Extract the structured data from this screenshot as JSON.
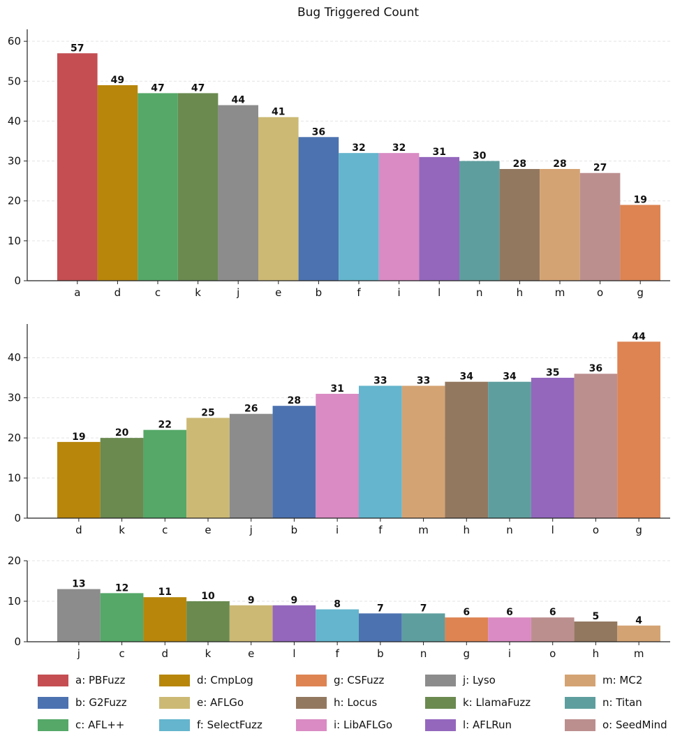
{
  "title": "Bug Triggered Count",
  "chart_data": [
    {
      "type": "bar",
      "title": "Bug Triggered Count",
      "categories": [
        "a",
        "d",
        "c",
        "k",
        "j",
        "e",
        "b",
        "f",
        "i",
        "l",
        "n",
        "h",
        "m",
        "o",
        "g"
      ],
      "values": [
        57,
        49,
        47,
        47,
        44,
        41,
        36,
        32,
        32,
        31,
        30,
        28,
        28,
        27,
        19
      ],
      "yticks": [
        0,
        10,
        20,
        30,
        40,
        50,
        60
      ],
      "ylim": [
        0,
        63
      ],
      "xlabel": "",
      "ylabel": "",
      "grid": true
    },
    {
      "type": "bar",
      "categories": [
        "d",
        "k",
        "c",
        "e",
        "j",
        "b",
        "i",
        "f",
        "m",
        "h",
        "n",
        "l",
        "o",
        "g"
      ],
      "values": [
        19,
        20,
        22,
        25,
        26,
        28,
        31,
        33,
        33,
        34,
        34,
        35,
        36,
        44
      ],
      "yticks": [
        0,
        10,
        20,
        30,
        40
      ],
      "ylim": [
        0,
        48.4
      ],
      "xlabel": "",
      "ylabel": "",
      "grid": true
    },
    {
      "type": "bar",
      "categories": [
        "j",
        "c",
        "d",
        "k",
        "e",
        "l",
        "f",
        "b",
        "n",
        "g",
        "i",
        "o",
        "h",
        "m"
      ],
      "values": [
        13,
        12,
        11,
        10,
        9,
        9,
        8,
        7,
        7,
        6,
        6,
        6,
        5,
        4
      ],
      "yticks": [
        0,
        10,
        20
      ],
      "ylim": [
        0,
        20
      ],
      "xlabel": "",
      "ylabel": "",
      "grid": true
    }
  ],
  "legend": [
    {
      "key": "a",
      "label": "a: PBFuzz",
      "color": "#c44e52"
    },
    {
      "key": "b",
      "label": "b: G2Fuzz",
      "color": "#4c72b0"
    },
    {
      "key": "c",
      "label": "c: AFL++",
      "color": "#55a868"
    },
    {
      "key": "d",
      "label": "d: CmpLog",
      "color": "#b8860b"
    },
    {
      "key": "e",
      "label": "e: AFLGo",
      "color": "#ccb974"
    },
    {
      "key": "f",
      "label": "f: SelectFuzz",
      "color": "#64b5cd"
    },
    {
      "key": "g",
      "label": "g: CSFuzz",
      "color": "#dd8452"
    },
    {
      "key": "h",
      "label": "h: Locus",
      "color": "#937860"
    },
    {
      "key": "i",
      "label": "i: LibAFLGo",
      "color": "#da8bc3"
    },
    {
      "key": "j",
      "label": "j: Lyso",
      "color": "#8c8c8c"
    },
    {
      "key": "k",
      "label": "k: LlamaFuzz",
      "color": "#6a8a50"
    },
    {
      "key": "l",
      "label": "l: AFLRun",
      "color": "#9467bd"
    },
    {
      "key": "m",
      "label": "m: MC2",
      "color": "#d4a373"
    },
    {
      "key": "n",
      "label": "n: Titan",
      "color": "#5f9e9e"
    },
    {
      "key": "o",
      "label": "o: SeedMind",
      "color": "#bc8f8f"
    }
  ]
}
